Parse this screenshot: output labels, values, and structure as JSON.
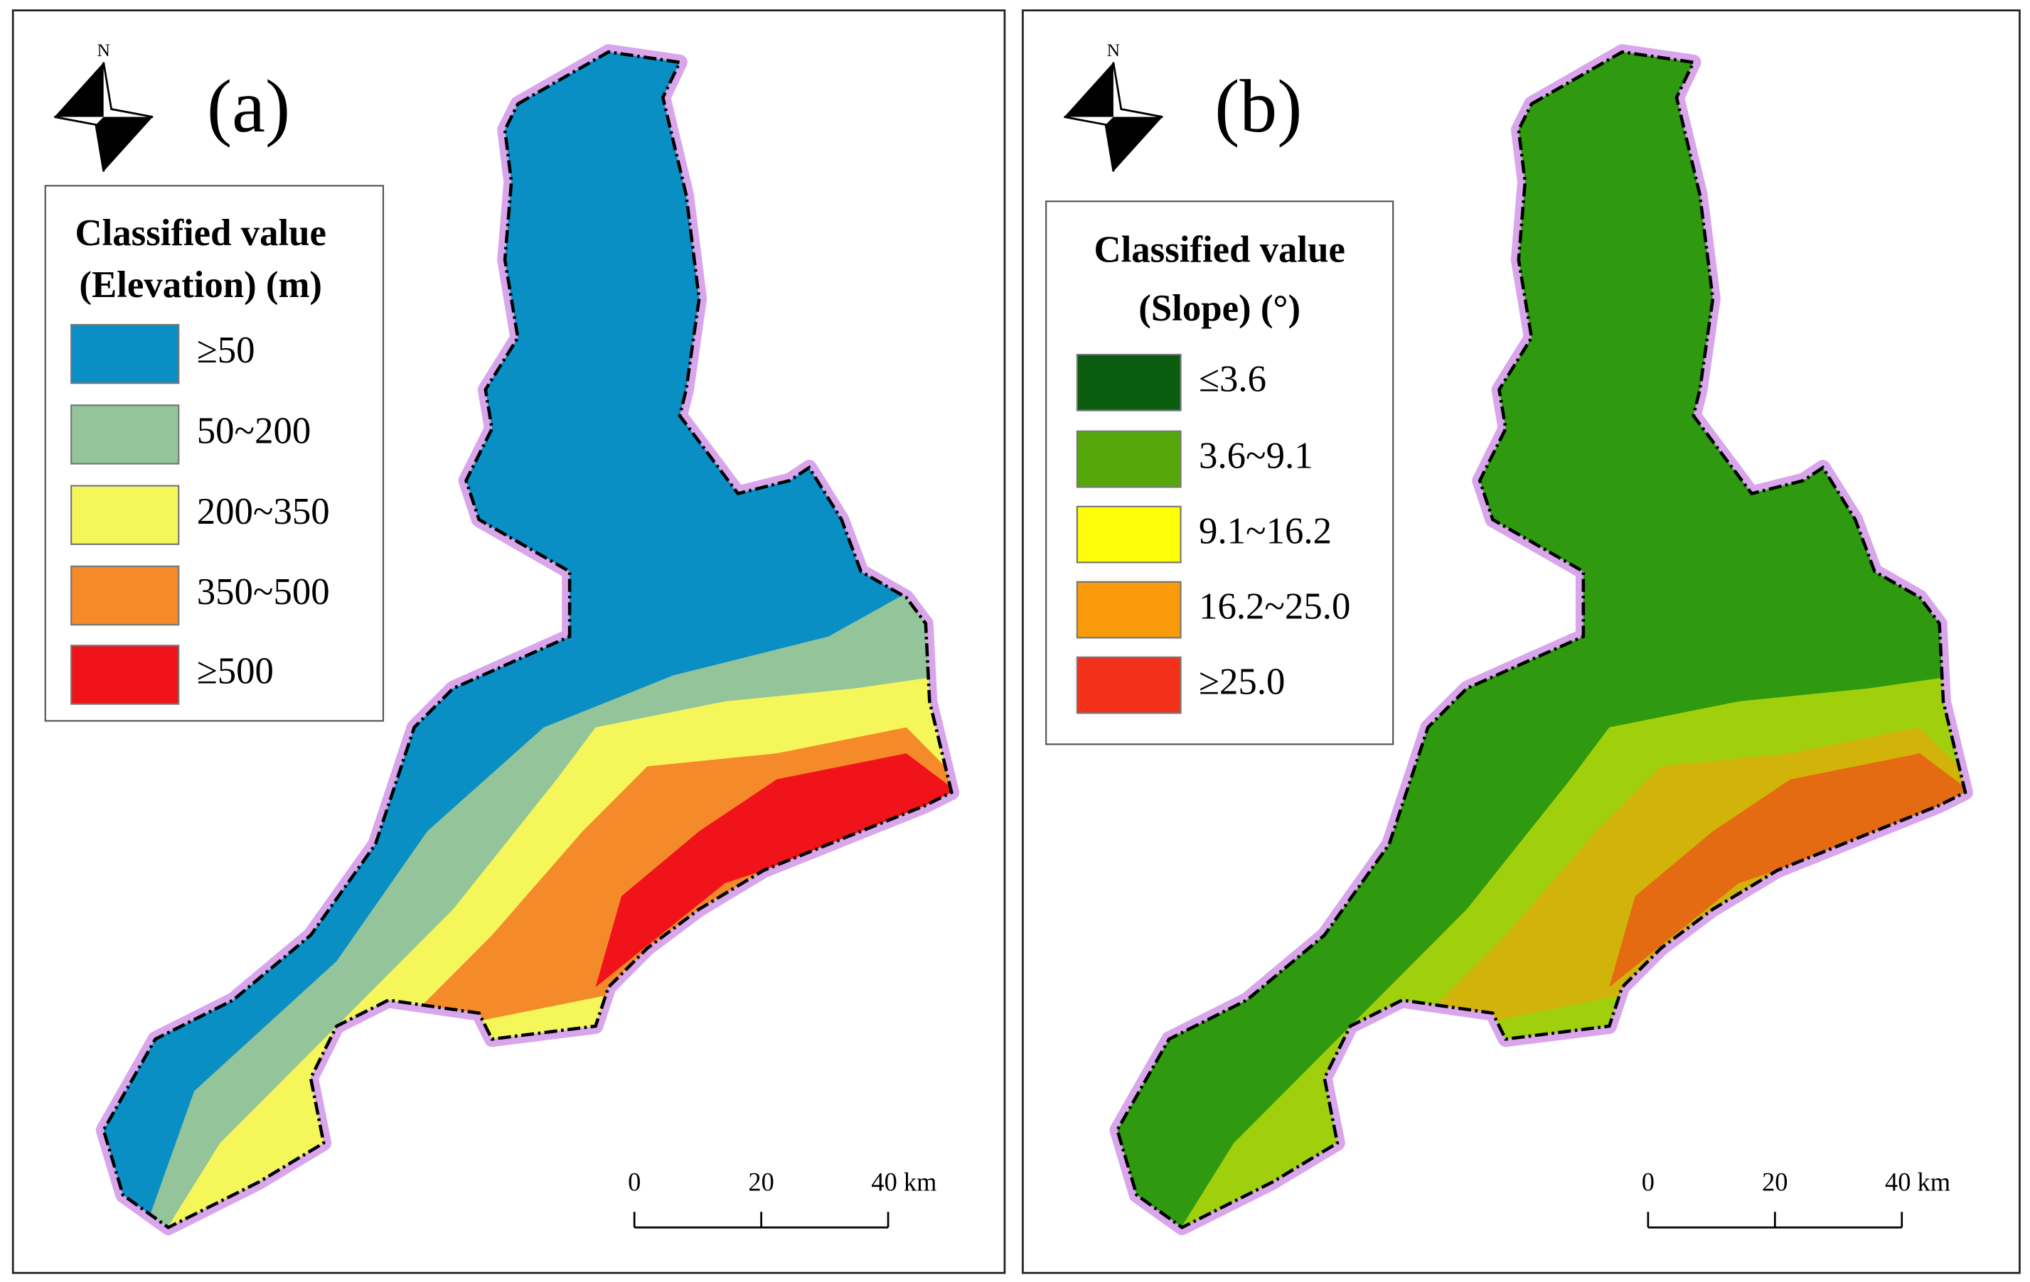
{
  "panels": [
    {
      "label": "(a)",
      "north": "N",
      "legend": {
        "title": [
          "Classified value",
          "(Elevation) (m)"
        ],
        "items": [
          {
            "label": "≥50",
            "color": "#0a8fc4"
          },
          {
            "label": "50~200",
            "color": "#93c49a"
          },
          {
            "label": "200~350",
            "color": "#f4f65a"
          },
          {
            "label": "350~500",
            "color": "#f58a2a"
          },
          {
            "label": "≥500",
            "color": "#f0141a"
          }
        ]
      },
      "scale_bar": [
        "0",
        "20",
        "40 km"
      ]
    },
    {
      "label": "(b)",
      "north": "N",
      "legend": {
        "title": [
          "Classified value",
          "(Slope) (°)"
        ],
        "items": [
          {
            "label": "≤3.6",
            "color": "#0a5c0f"
          },
          {
            "label": "3.6~9.1",
            "color": "#56a80a"
          },
          {
            "label": "9.1~16.2",
            "color": "#fefe0a"
          },
          {
            "label": "16.2~25.0",
            "color": "#fb9a0a"
          },
          {
            "label": "≥25.0",
            "color": "#f3301a"
          }
        ]
      },
      "scale_bar": [
        "0",
        "20",
        "40 km"
      ]
    }
  ]
}
